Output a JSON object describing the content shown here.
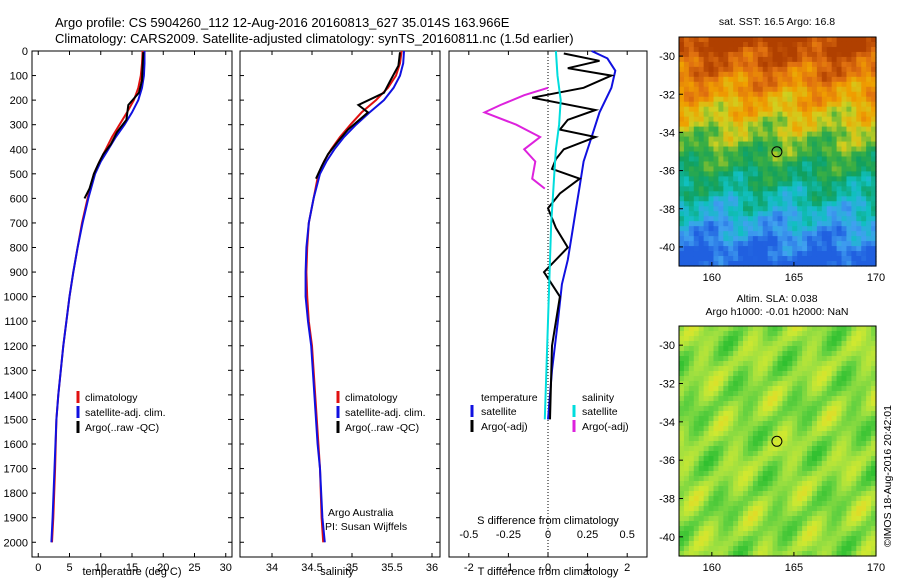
{
  "header": {
    "line1": "Argo profile: CS 5904260_112 12-Aug-2016 20160813_627 35.014S 163.966E",
    "line2": "Climatology: CARS2009. Satellite-adjusted climatology: synTS_20160811.nc (1.5d earlier)"
  },
  "footer": {
    "credit": "©IMOS 18-Aug-2016 20:42:01"
  },
  "colors": {
    "climatology": "#e01010",
    "satellite": "#1010e0",
    "argo": "#000000",
    "sat_salinity": "#00dddd",
    "argo_salinity": "#dd22dd"
  },
  "chart_data": [
    {
      "id": "temperature",
      "type": "line",
      "xlabel": "temperature (deg C)",
      "ylabel": "",
      "xlim": [
        -1,
        31
      ],
      "ylim": [
        2060,
        0
      ],
      "xticks": [
        0,
        5,
        10,
        15,
        20,
        25,
        30
      ],
      "yticks": [
        0,
        100,
        200,
        300,
        400,
        500,
        600,
        700,
        800,
        900,
        1000,
        1100,
        1200,
        1300,
        1400,
        1500,
        1600,
        1700,
        1800,
        1900,
        2000
      ],
      "legend": [
        "climatology",
        "satellite-adj. clim.",
        "Argo(..raw -QC)"
      ],
      "series": [
        {
          "name": "climatology",
          "color": "#e01010",
          "x": [
            16.7,
            16.6,
            16.4,
            16.0,
            15.3,
            14.2,
            13.0,
            11.8,
            10.8,
            9.8,
            8.9,
            7.9,
            7.0,
            6.3,
            5.6,
            5.0,
            4.5,
            4.0,
            3.6,
            3.2,
            2.9,
            2.7,
            2.4,
            2.2
          ],
          "y": [
            0,
            50,
            100,
            150,
            200,
            250,
            300,
            350,
            400,
            450,
            500,
            600,
            700,
            800,
            900,
            1000,
            1100,
            1200,
            1300,
            1400,
            1500,
            1700,
            1900,
            2000
          ]
        },
        {
          "name": "satellite-adj. clim.",
          "color": "#1010e0",
          "x": [
            17.0,
            17.0,
            16.9,
            16.6,
            16.0,
            15.0,
            13.8,
            12.4,
            11.2,
            10.0,
            9.1,
            8.0,
            7.1,
            6.3,
            5.6,
            5.0,
            4.5,
            4.0,
            3.6,
            3.2,
            2.9,
            2.6,
            2.3,
            2.1
          ],
          "y": [
            0,
            50,
            100,
            150,
            200,
            250,
            300,
            350,
            400,
            450,
            500,
            600,
            700,
            800,
            900,
            1000,
            1100,
            1200,
            1300,
            1400,
            1500,
            1700,
            1900,
            2000
          ]
        },
        {
          "name": "Argo(..raw -QC)",
          "color": "#000000",
          "x": [
            16.8,
            16.7,
            16.6,
            16.1,
            14.4,
            14.1,
            12.6,
            11.6,
            10.4,
            9.6,
            8.9,
            8.2,
            7.4
          ],
          "y": [
            5,
            60,
            120,
            170,
            220,
            280,
            330,
            380,
            420,
            460,
            500,
            560,
            600
          ]
        }
      ]
    },
    {
      "id": "salinity",
      "type": "line",
      "xlabel": "salinity",
      "ylabel": "",
      "xlim": [
        33.6,
        36.1
      ],
      "ylim": [
        2060,
        0
      ],
      "xticks": [
        34,
        34.5,
        35,
        35.5,
        36
      ],
      "legend": [
        "climatology",
        "satellite-adj. clim.",
        "Argo(..raw -QC)"
      ],
      "annotations": [
        "Argo Australia",
        "PI: Susan Wijffels"
      ],
      "series": [
        {
          "name": "climatology",
          "color": "#e01010",
          "x": [
            35.62,
            35.6,
            35.55,
            35.45,
            35.3,
            35.12,
            34.98,
            34.85,
            34.74,
            34.65,
            34.58,
            34.52,
            34.46,
            34.44,
            34.43,
            34.44,
            34.46,
            34.5,
            34.54,
            34.58,
            34.6,
            34.62,
            34.64
          ],
          "y": [
            0,
            50,
            100,
            150,
            200,
            250,
            300,
            350,
            400,
            450,
            500,
            600,
            700,
            800,
            900,
            1000,
            1100,
            1200,
            1400,
            1600,
            1700,
            1900,
            2000
          ]
        },
        {
          "name": "satellite-adj. clim.",
          "color": "#1010e0",
          "x": [
            35.65,
            35.64,
            35.6,
            35.52,
            35.4,
            35.22,
            35.05,
            34.9,
            34.78,
            34.68,
            34.6,
            34.52,
            34.46,
            34.43,
            34.42,
            34.42,
            34.45,
            34.49,
            34.53,
            34.57,
            34.6,
            34.63,
            34.66
          ],
          "y": [
            0,
            50,
            100,
            150,
            200,
            250,
            300,
            350,
            400,
            450,
            500,
            600,
            700,
            800,
            900,
            1000,
            1100,
            1200,
            1400,
            1600,
            1700,
            1900,
            2000
          ]
        },
        {
          "name": "Argo(..raw -QC)",
          "color": "#000000",
          "x": [
            35.6,
            35.58,
            35.48,
            35.4,
            35.08,
            35.2,
            34.95,
            34.82,
            34.7,
            34.62,
            34.55
          ],
          "y": [
            5,
            60,
            120,
            170,
            220,
            250,
            320,
            370,
            420,
            470,
            520
          ]
        }
      ]
    },
    {
      "id": "difference",
      "type": "line",
      "xlabel": "T difference from climatology",
      "x2label": "S difference from climatology",
      "xlim": [
        -2.5,
        2.5
      ],
      "x2lim": [
        -0.625,
        0.625
      ],
      "ylim": [
        2060,
        0
      ],
      "xticks": [
        -2,
        -1,
        0,
        1,
        2
      ],
      "x2ticks": [
        -0.5,
        -0.25,
        0,
        0.25,
        0.5
      ],
      "x2ticklabels": [
        "-0.5",
        "-0.25",
        "0",
        "0.25",
        "0.5"
      ],
      "legend": [
        {
          "group": "temperature",
          "items": [
            "satellite",
            "Argo(-adj)"
          ]
        },
        {
          "group": "salinity",
          "items": [
            "satellite",
            "Argo(-adj)"
          ]
        }
      ],
      "series": [
        {
          "name": "temperature satellite",
          "color": "#1010e0",
          "axis": "T",
          "x": [
            1.1,
            1.5,
            1.7,
            1.6,
            1.3,
            1.1,
            0.9,
            0.8,
            0.7,
            0.6,
            0.5,
            0.35,
            0.25,
            0.1,
            0.0
          ],
          "y": [
            0,
            30,
            80,
            150,
            250,
            350,
            450,
            550,
            650,
            750,
            850,
            950,
            1100,
            1300,
            1500
          ]
        },
        {
          "name": "temperature Argo(-adj)",
          "color": "#000000",
          "axis": "T",
          "x": [
            0.4,
            1.3,
            0.5,
            1.6,
            0.9,
            -0.4,
            1.2,
            0.5,
            0.3,
            1.2,
            0.4,
            0.2,
            0.1,
            0.8,
            0.3,
            0.0,
            0.2,
            0.5,
            -0.1,
            0.3,
            0.1,
            0.05
          ],
          "y": [
            10,
            40,
            70,
            100,
            150,
            190,
            240,
            280,
            320,
            350,
            400,
            440,
            480,
            520,
            580,
            640,
            720,
            800,
            900,
            1000,
            1200,
            1500
          ]
        },
        {
          "name": "salinity satellite",
          "color": "#00dddd",
          "axis": "S",
          "x": [
            0.05,
            0.06,
            0.08,
            0.07,
            0.05,
            0.04,
            0.03,
            0.02,
            0.01,
            0.0,
            -0.01,
            -0.02
          ],
          "y": [
            0,
            100,
            200,
            300,
            400,
            500,
            600,
            700,
            900,
            1100,
            1300,
            1500
          ]
        },
        {
          "name": "salinity Argo(-adj)",
          "color": "#dd22dd",
          "axis": "S",
          "x": [
            0.0,
            -0.15,
            -0.3,
            -0.4,
            -0.2,
            -0.05,
            -0.15,
            -0.08,
            -0.1,
            -0.02
          ],
          "y": [
            150,
            180,
            220,
            250,
            300,
            350,
            400,
            450,
            520,
            560
          ]
        }
      ]
    },
    {
      "id": "sst_map",
      "type": "heatmap",
      "title": "sat. SST: 16.5 Argo: 16.8",
      "xlim": [
        158,
        170
      ],
      "ylim": [
        -41,
        -29
      ],
      "xticks": [
        160,
        165,
        170
      ],
      "yticks": [
        -30,
        -32,
        -34,
        -36,
        -38,
        -40
      ],
      "marker": {
        "lon": 163.966,
        "lat": -35.014
      },
      "stops": [
        "#b04000",
        "#e07010",
        "#f0a000",
        "#d0d020",
        "#40b040",
        "#10a060",
        "#10c0c0",
        "#40a0f0",
        "#2060e0"
      ]
    },
    {
      "id": "sla_map",
      "type": "heatmap",
      "title": "Altim. SLA: 0.038",
      "subtitle": "Argo h1000: -0.01 h2000: NaN",
      "xlim": [
        158,
        170
      ],
      "ylim": [
        -41,
        -29
      ],
      "xticks": [
        160,
        165,
        170
      ],
      "yticks": [
        -30,
        -32,
        -34,
        -36,
        -38,
        -40
      ],
      "marker": {
        "lon": 163.966,
        "lat": -35.014
      },
      "stops": [
        "#30c030",
        "#60d040",
        "#a0e040",
        "#d0e830",
        "#f0d020",
        "#f0a010"
      ]
    }
  ]
}
